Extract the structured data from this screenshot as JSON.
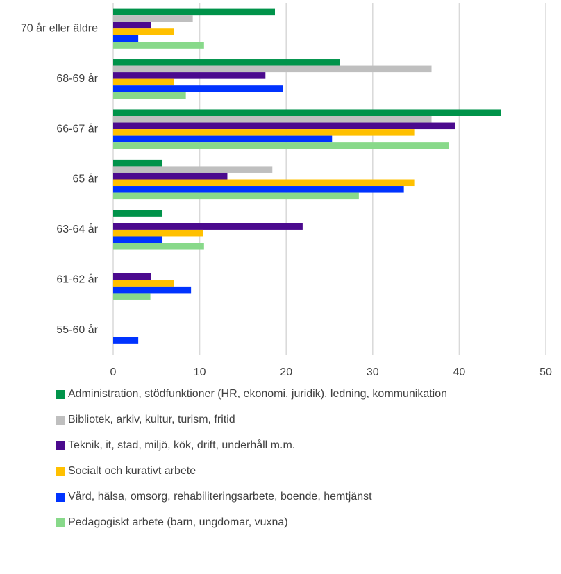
{
  "chart_data": {
    "type": "hbar",
    "categories": [
      "70 år eller äldre",
      "68-69 år",
      "66-67 år",
      "65 år",
      "63-64 år",
      "61-62 år",
      "55-60 år"
    ],
    "series": [
      {
        "name": "Administration, stödfunktioner (HR, ekonomi, juridik), ledning, kommunikation",
        "color": "#00934a",
        "values": [
          18.7,
          26.2,
          44.8,
          5.7,
          5.7,
          0,
          0
        ]
      },
      {
        "name": "Bibliotek, arkiv, kultur, turism, fritid",
        "color": "#bfbfbf",
        "values": [
          9.2,
          36.8,
          36.8,
          18.4,
          0,
          0,
          0
        ]
      },
      {
        "name": "Teknik, it, stad, miljö, kök, drift, underhåll m.m.",
        "color": "#4b0a8e",
        "values": [
          4.4,
          17.6,
          39.5,
          13.2,
          21.9,
          4.4,
          0
        ]
      },
      {
        "name": "Socialt och kurativt arbete",
        "color": "#ffc000",
        "values": [
          7.0,
          7.0,
          34.8,
          34.8,
          10.4,
          7.0,
          0
        ]
      },
      {
        "name": "Vård, hälsa, omsorg, rehabiliteringsarbete, boende, hemtjänst",
        "color": "#0033ff",
        "values": [
          2.9,
          19.6,
          25.3,
          33.6,
          5.7,
          9.0,
          2.9
        ]
      },
      {
        "name": "Pedagogiskt arbete (barn, ungdomar, vuxna)",
        "color": "#88d98a",
        "values": [
          10.5,
          8.4,
          38.8,
          28.4,
          10.5,
          4.3,
          0
        ]
      }
    ],
    "xlim": [
      0,
      50
    ],
    "xticks": [
      0,
      10,
      20,
      30,
      40,
      50
    ],
    "grid": true
  }
}
